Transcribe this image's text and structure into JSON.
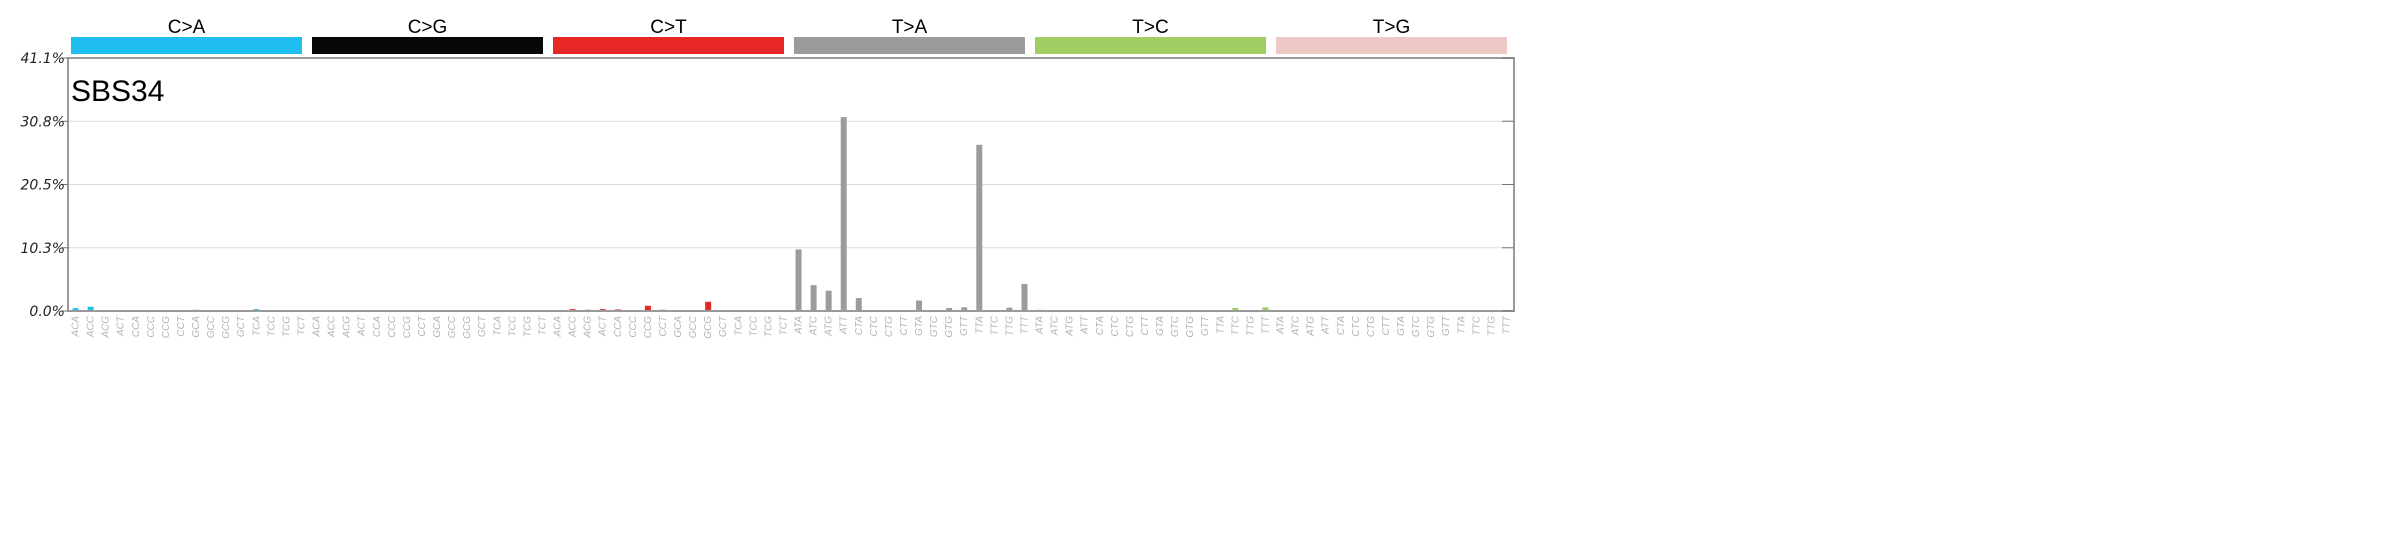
{
  "chart_data": {
    "type": "bar",
    "title": "SBS34",
    "yticks": [
      "0.0%",
      "10.3%",
      "20.5%",
      "30.8%",
      "41.1%"
    ],
    "ylim": [
      0,
      41.1
    ],
    "groups": [
      {
        "name": "C>A",
        "color": "#1ebff0"
      },
      {
        "name": "C>G",
        "color": "#050708"
      },
      {
        "name": "C>T",
        "color": "#e62725"
      },
      {
        "name": "T>A",
        "color": "#9c9c9c"
      },
      {
        "name": "T>C",
        "color": "#a1ce63"
      },
      {
        "name": "T>G",
        "color": "#edc8c5"
      }
    ],
    "categories": [
      "ACA",
      "ACC",
      "ACG",
      "ACT",
      "CCA",
      "CCC",
      "CCG",
      "CCT",
      "GCA",
      "GCC",
      "GCG",
      "GCT",
      "TCA",
      "TCC",
      "TCG",
      "TCT",
      "ACA",
      "ACC",
      "ACG",
      "ACT",
      "CCA",
      "CCC",
      "CCG",
      "CCT",
      "GCA",
      "GCC",
      "GCG",
      "GCT",
      "TCA",
      "TCC",
      "TCG",
      "TCT",
      "ACA",
      "ACC",
      "ACG",
      "ACT",
      "CCA",
      "CCC",
      "CCG",
      "CCT",
      "GCA",
      "GCC",
      "GCG",
      "GCT",
      "TCA",
      "TCC",
      "TCG",
      "TCT",
      "ATA",
      "ATC",
      "ATG",
      "ATT",
      "CTA",
      "CTC",
      "CTG",
      "CTT",
      "GTA",
      "GTC",
      "GTG",
      "GTT",
      "TTA",
      "TTC",
      "TTG",
      "TTT",
      "ATA",
      "ATC",
      "ATG",
      "ATT",
      "CTA",
      "CTC",
      "CTG",
      "CTT",
      "GTA",
      "GTC",
      "GTG",
      "GTT",
      "TTA",
      "TTC",
      "TTG",
      "TTT",
      "ATA",
      "ATC",
      "ATG",
      "ATT",
      "CTA",
      "CTC",
      "CTG",
      "CTT",
      "GTA",
      "GTC",
      "GTG",
      "GTT",
      "TTA",
      "TTC",
      "TTG",
      "TTT"
    ],
    "values": [
      0.45,
      0.7,
      0.15,
      0.05,
      0.05,
      0.15,
      0.15,
      0.1,
      0.2,
      0.15,
      0.15,
      0.1,
      0.3,
      0.05,
      0.05,
      0.1,
      0.05,
      0.05,
      0.05,
      0.05,
      0.15,
      0.15,
      0.15,
      0.1,
      0.15,
      0.1,
      0.05,
      0.1,
      0.1,
      0.1,
      0.05,
      0.1,
      0.15,
      0.3,
      0.2,
      0.3,
      0.25,
      0.15,
      0.85,
      0.2,
      0.1,
      0.1,
      1.5,
      0.15,
      0.05,
      0.1,
      0.1,
      0.1,
      10.0,
      4.2,
      3.3,
      31.5,
      2.1,
      0.05,
      0.05,
      0.05,
      1.7,
      0.05,
      0.5,
      0.6,
      27.0,
      0.05,
      0.55,
      4.4,
      0.2,
      0.1,
      0.15,
      0.05,
      0.05,
      0.05,
      0.05,
      0.05,
      0.05,
      0.05,
      0.05,
      0.05,
      0.05,
      0.5,
      0.05,
      0.6,
      0.15,
      0.05,
      0.05,
      0.05,
      0.05,
      0.05,
      0.05,
      0.05,
      0.05,
      0.05,
      0.05,
      0.05,
      0.05,
      0.05,
      0.05,
      0.05
    ]
  }
}
